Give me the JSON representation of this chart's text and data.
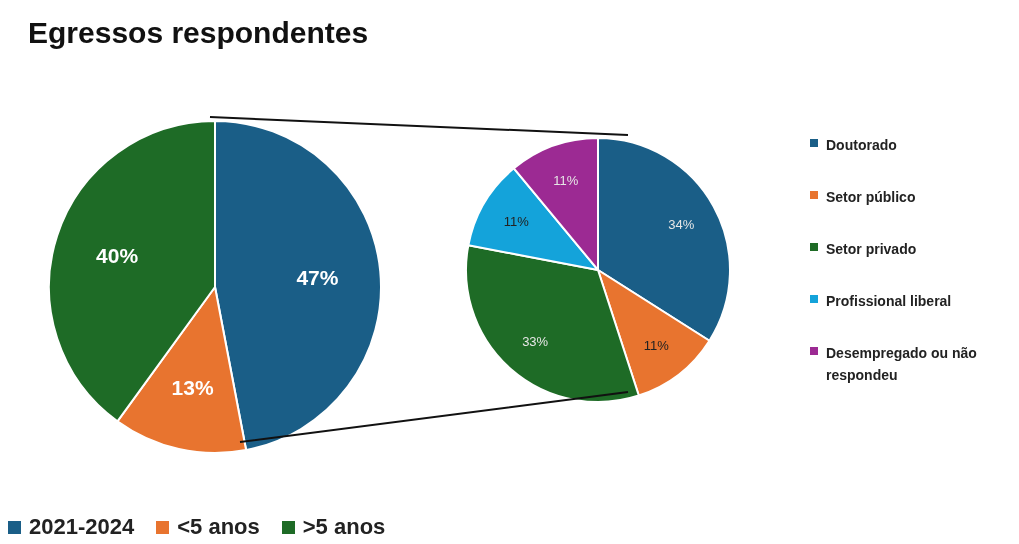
{
  "chart_data": [
    {
      "type": "pie",
      "title": "Egressos respondentes",
      "categories": [
        "2021-2024",
        "<5 anos",
        ">5 anos"
      ],
      "values": [
        47,
        13,
        40
      ],
      "value_labels": [
        "47%",
        "13%",
        "40%"
      ],
      "colors": [
        "#1a5e87",
        "#e8742f",
        "#1e6b26"
      ],
      "legend": "bottom"
    },
    {
      "type": "pie",
      "categories": [
        "Doutorado",
        "Setor público",
        "Setor privado",
        "Profissional liberal",
        "Desempregado ou não respondeu"
      ],
      "values": [
        34,
        11,
        33,
        11,
        11
      ],
      "value_labels": [
        "34%",
        "11%",
        "33%",
        "11%",
        "11%"
      ],
      "colors": [
        "#1a5e87",
        "#e8742f",
        "#1e6b26",
        "#14a3da",
        "#9c2a93"
      ],
      "legend": "right"
    }
  ]
}
